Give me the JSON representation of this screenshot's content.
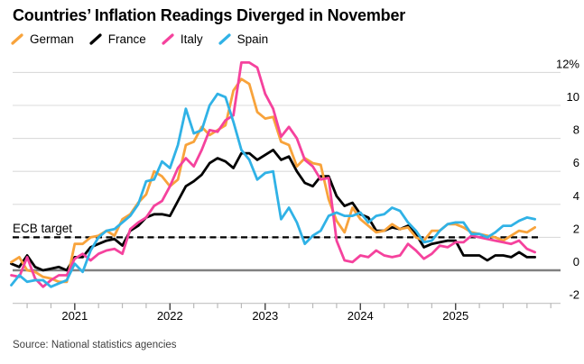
{
  "title": "Countries’ Inflation Readings Diverged in November",
  "source": "Source: National statistics agencies",
  "annotations": {
    "ecb_target_label": "ECB target",
    "ecb_target_value": 2
  },
  "colors": {
    "german": "#F8A33B",
    "france": "#000000",
    "italy": "#F5429D",
    "spain": "#30B2E6",
    "grid": "#DBDBDB",
    "zero_line": "#808080",
    "axis_baseline": "#C8C8C8",
    "tick_major": "#404040",
    "tick_minor": "#B9B9B9",
    "dashed_target": "#000000"
  },
  "chart_data": {
    "type": "line",
    "title": "Countries’ Inflation Readings Diverged in November",
    "x_frequency": "monthly",
    "x_start": "2020-05",
    "x_end": "2025-11",
    "xticks": [
      "2021",
      "2022",
      "2023",
      "2024",
      "2025"
    ],
    "yticks": [
      -2,
      0,
      2,
      4,
      6,
      8,
      10,
      12
    ],
    "ytick_top_label": "12%",
    "ylim": [
      -2,
      12.9
    ],
    "grid": "horizontal",
    "legend_position": "top-left",
    "target_line": {
      "label": "ECB target",
      "value": 2,
      "style": "dashed"
    },
    "series": [
      {
        "name": "German",
        "color": "#F8A33B",
        "values": [
          0.5,
          0.8,
          0.0,
          -0.1,
          -0.4,
          -0.5,
          -0.7,
          -0.7,
          1.6,
          1.6,
          2.0,
          2.1,
          2.4,
          2.1,
          3.1,
          3.4,
          4.1,
          4.6,
          6.0,
          5.7,
          5.1,
          5.5,
          7.6,
          7.8,
          8.7,
          8.2,
          8.5,
          8.8,
          10.9,
          11.6,
          11.3,
          9.6,
          9.2,
          9.3,
          7.8,
          7.6,
          6.3,
          6.8,
          6.5,
          6.4,
          4.3,
          3.0,
          2.3,
          3.8,
          3.1,
          2.7,
          2.3,
          2.4,
          2.8,
          2.5,
          2.6,
          2.0,
          1.8,
          2.4,
          2.4,
          2.8,
          2.8,
          2.6,
          2.3,
          2.2,
          2.1,
          2.0,
          1.8,
          2.1,
          2.4,
          2.3,
          2.6
        ]
      },
      {
        "name": "France",
        "color": "#000000",
        "values": [
          0.4,
          0.2,
          0.9,
          0.2,
          0.0,
          0.1,
          0.2,
          0.0,
          0.8,
          0.8,
          1.4,
          1.6,
          1.8,
          1.9,
          1.5,
          2.4,
          2.7,
          3.2,
          3.4,
          3.4,
          3.3,
          4.2,
          5.1,
          5.4,
          5.8,
          6.5,
          6.8,
          6.6,
          6.2,
          7.1,
          7.1,
          6.7,
          7.0,
          7.3,
          6.7,
          6.9,
          6.0,
          5.3,
          5.1,
          5.7,
          5.7,
          4.5,
          3.9,
          4.1,
          3.4,
          3.2,
          2.4,
          2.4,
          2.6,
          2.5,
          2.7,
          2.2,
          1.4,
          1.6,
          1.7,
          1.8,
          1.8,
          0.9,
          0.9,
          0.9,
          0.6,
          0.9,
          0.9,
          0.8,
          1.1,
          0.8,
          0.8
        ]
      },
      {
        "name": "Italy",
        "color": "#F5429D",
        "values": [
          -0.3,
          -0.4,
          0.8,
          -0.5,
          -1.0,
          -0.6,
          -0.3,
          -0.3,
          0.7,
          1.0,
          0.6,
          1.0,
          1.2,
          1.3,
          1.0,
          2.5,
          2.9,
          3.2,
          3.9,
          4.2,
          5.1,
          6.2,
          6.8,
          6.3,
          7.3,
          8.5,
          8.4,
          9.1,
          9.4,
          12.6,
          12.6,
          12.3,
          10.7,
          9.8,
          8.1,
          8.7,
          8.0,
          6.7,
          6.3,
          5.5,
          5.6,
          1.8,
          0.6,
          0.5,
          0.9,
          0.8,
          1.2,
          0.9,
          0.8,
          0.9,
          1.6,
          1.2,
          0.7,
          1.0,
          1.5,
          1.4,
          1.7,
          1.7,
          2.1,
          2.0,
          1.9,
          1.8,
          1.7,
          1.6,
          1.8,
          1.3,
          1.1
        ]
      },
      {
        "name": "Spain",
        "color": "#30B2E6",
        "values": [
          -0.9,
          -0.3,
          -0.7,
          -0.6,
          -0.6,
          -1.0,
          -0.8,
          -0.6,
          0.4,
          -0.1,
          1.2,
          2.0,
          2.4,
          2.5,
          2.9,
          3.3,
          4.0,
          5.4,
          5.5,
          6.6,
          6.2,
          7.6,
          9.8,
          8.3,
          8.5,
          10.0,
          10.7,
          10.5,
          9.0,
          7.3,
          6.7,
          5.5,
          5.9,
          6.0,
          3.1,
          3.8,
          2.9,
          1.6,
          2.1,
          2.4,
          3.3,
          3.5,
          3.3,
          3.3,
          3.5,
          2.9,
          3.3,
          3.4,
          3.8,
          3.6,
          2.9,
          2.4,
          1.7,
          1.8,
          2.4,
          2.8,
          2.9,
          2.9,
          2.2,
          2.2,
          2.0,
          2.3,
          2.7,
          2.7,
          3.0,
          3.2,
          3.1
        ]
      }
    ]
  }
}
